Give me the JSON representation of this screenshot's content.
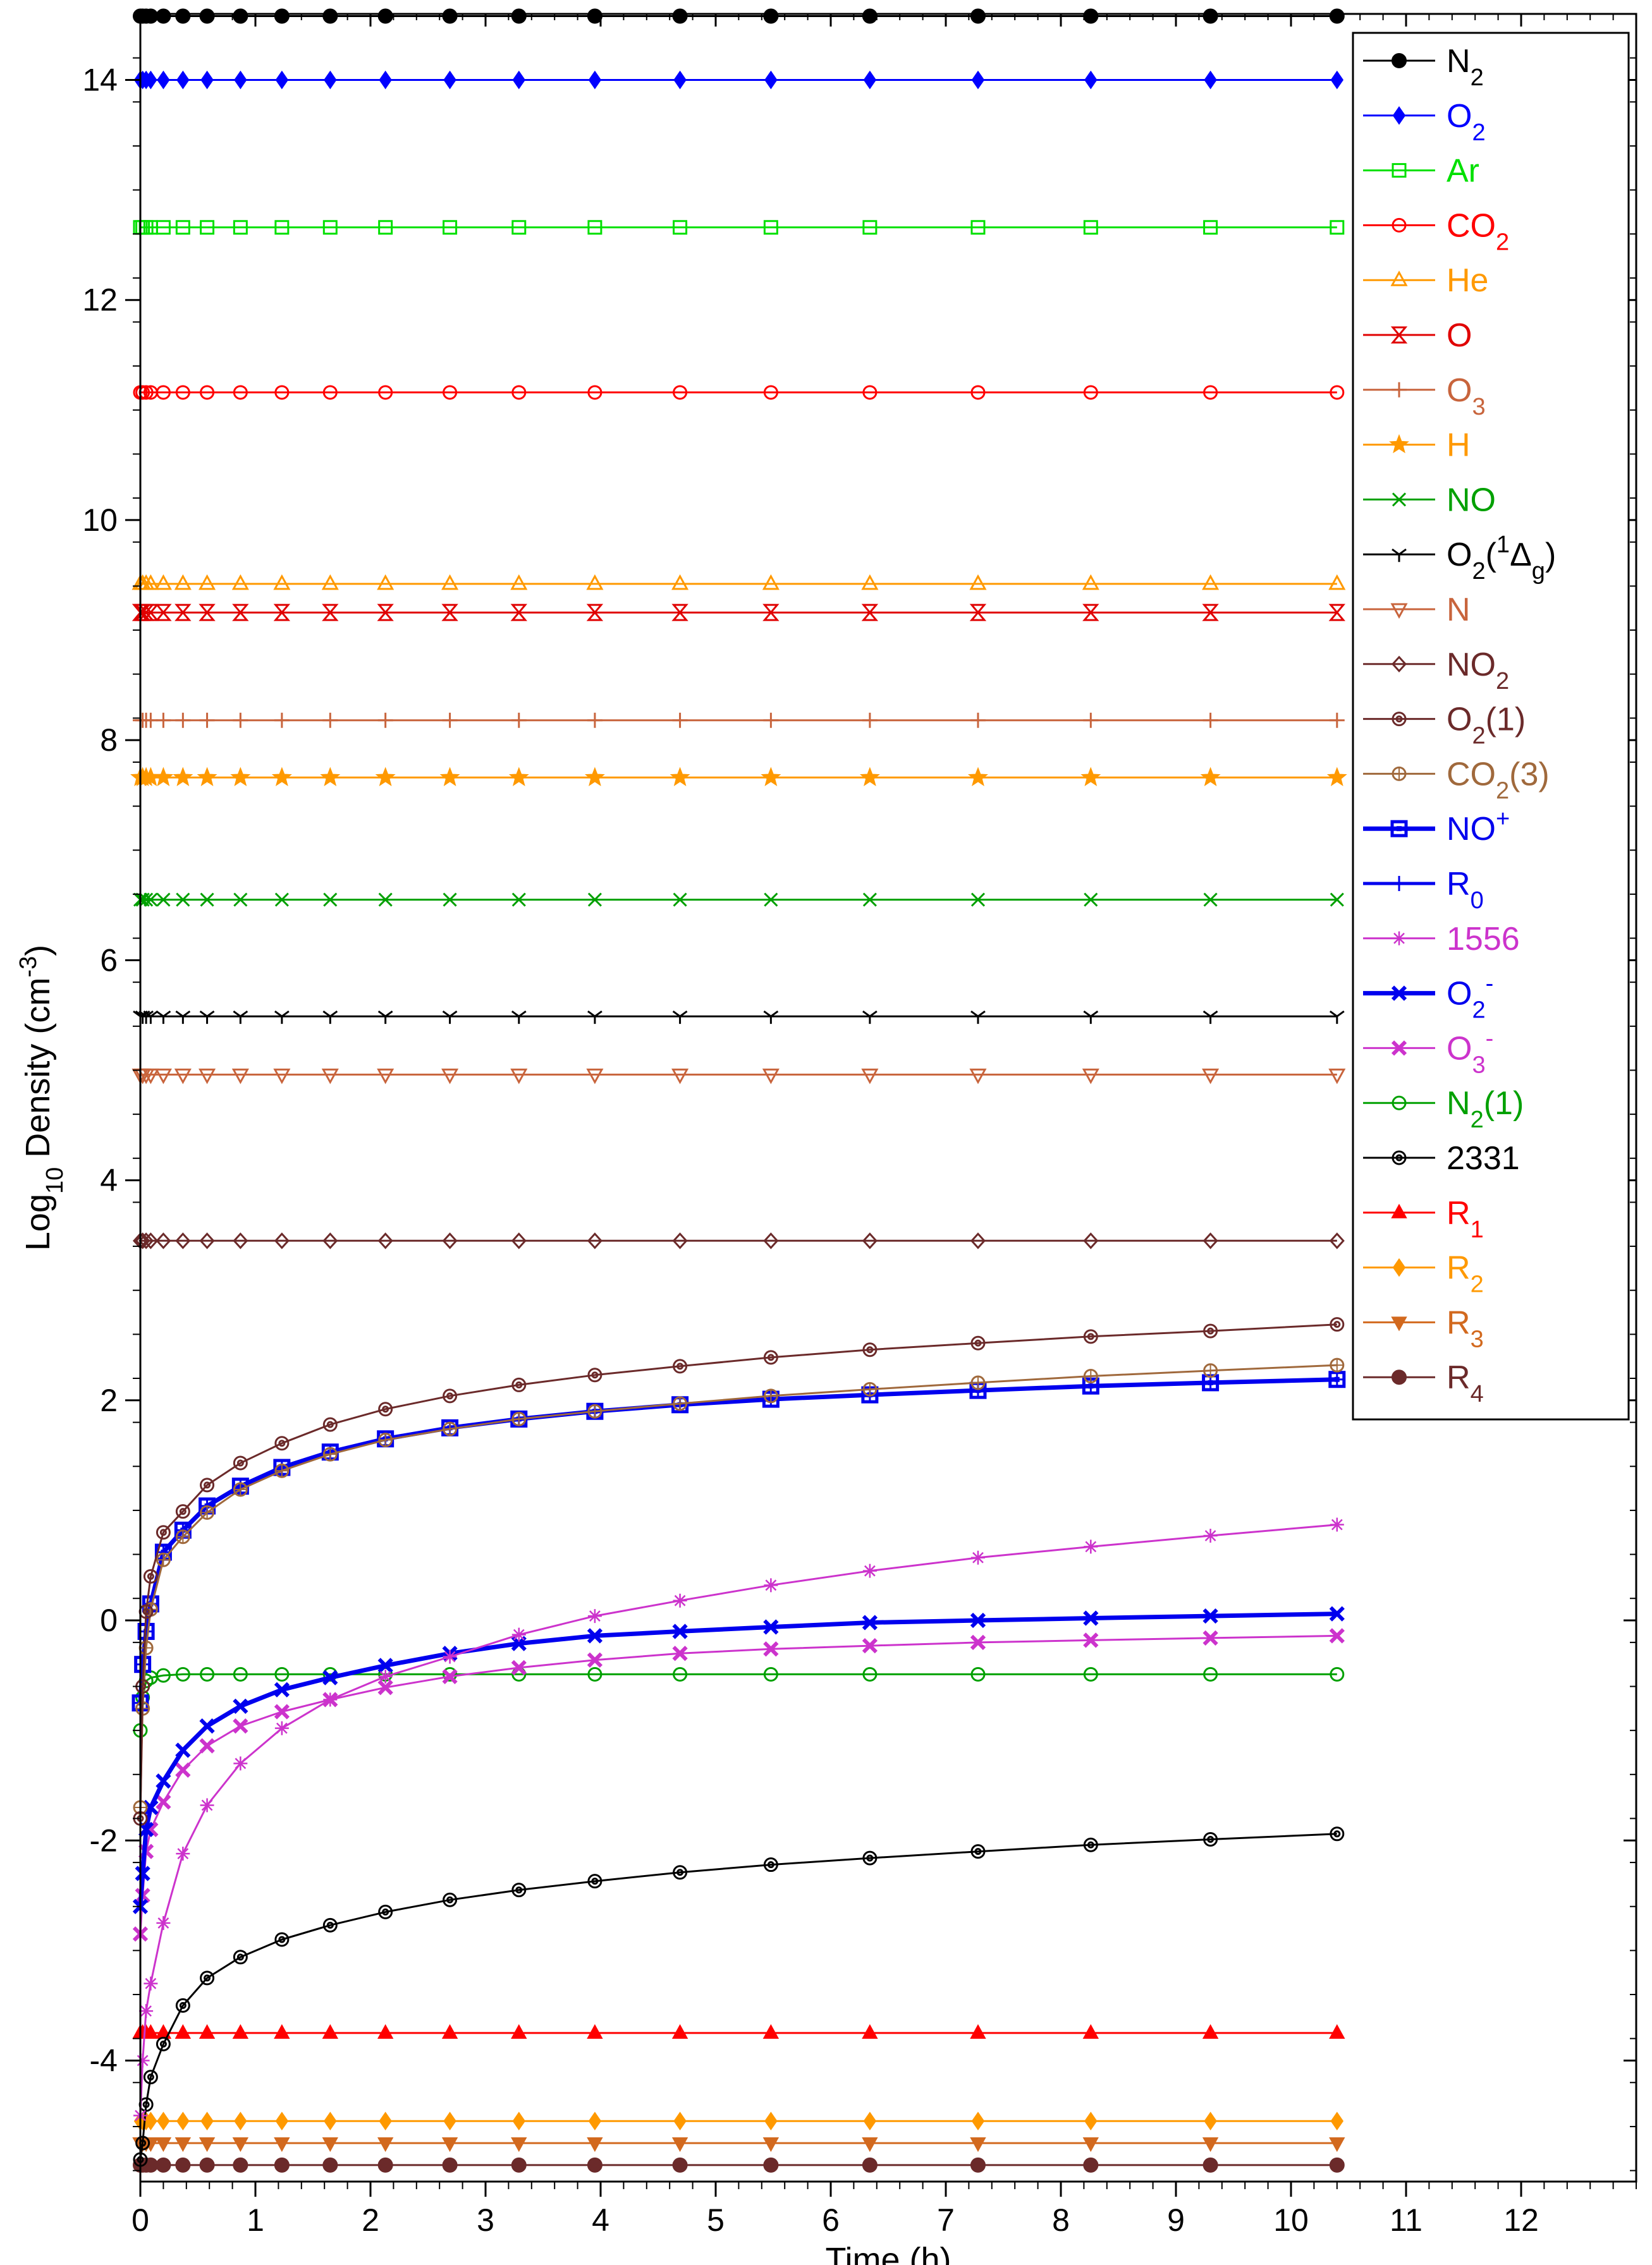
{
  "chart_data": {
    "type": "line",
    "title": "",
    "xlabel": "Time (h)",
    "ylabel_parts": [
      "Log",
      "10",
      " Density (cm",
      "-3",
      ")"
    ],
    "xlim": [
      0,
      13
    ],
    "ylim": [
      -5.1,
      14.6
    ],
    "x_ticks": [
      0,
      1,
      2,
      3,
      4,
      5,
      6,
      7,
      8,
      9,
      10,
      11,
      12
    ],
    "x_tick_labels": [
      "0",
      "1",
      "2",
      "3",
      "4",
      "5",
      "6",
      "7",
      "8",
      "9",
      "10",
      "11",
      "12"
    ],
    "y_ticks": [
      -4,
      -2,
      0,
      2,
      4,
      6,
      8,
      10,
      12,
      14
    ],
    "y_tick_labels": [
      "-4",
      "-2",
      "0",
      "2",
      "4",
      "6",
      "8",
      "10",
      "12",
      "14"
    ],
    "x": [
      0,
      0.02,
      0.05,
      0.09,
      0.2,
      0.37,
      0.58,
      0.87,
      1.23,
      1.65,
      2.13,
      2.69,
      3.29,
      3.95,
      4.69,
      5.48,
      6.34,
      7.28,
      8.26,
      9.3,
      10.4
    ],
    "legend": {
      "position": "top-right"
    },
    "series": [
      {
        "name": "N2",
        "label": [
          [
            "N",
            ""
          ],
          [
            "2",
            "sub"
          ]
        ],
        "color": "#000000",
        "marker": "dot",
        "width": 3,
        "const": 14.58
      },
      {
        "name": "O2",
        "label": [
          [
            "O",
            ""
          ],
          [
            "2",
            "sub"
          ]
        ],
        "color": "#0000ff",
        "marker": "diamond",
        "width": 3,
        "const": 14.0
      },
      {
        "name": "Ar",
        "label": [
          [
            "Ar",
            ""
          ]
        ],
        "color": "#00e000",
        "marker": "square-open",
        "width": 3,
        "const": 12.66
      },
      {
        "name": "CO2",
        "label": [
          [
            "CO",
            ""
          ],
          [
            "2",
            "sub"
          ]
        ],
        "color": "#ff0000",
        "marker": "circle-open",
        "width": 3,
        "const": 11.16
      },
      {
        "name": "He",
        "label": [
          [
            "He",
            ""
          ]
        ],
        "color": "#ff9900",
        "marker": "triangle-open",
        "width": 3,
        "const": 9.42
      },
      {
        "name": "O",
        "label": [
          [
            "O",
            ""
          ]
        ],
        "color": "#e00000",
        "marker": "bowtie",
        "width": 3,
        "const": 9.16
      },
      {
        "name": "O3",
        "label": [
          [
            "O",
            ""
          ],
          [
            "3",
            "sub"
          ]
        ],
        "color": "#c8643c",
        "marker": "plus",
        "width": 3,
        "const": 8.18
      },
      {
        "name": "H",
        "label": [
          [
            "H",
            ""
          ]
        ],
        "color": "#ff9900",
        "marker": "star",
        "width": 3,
        "const": 7.66
      },
      {
        "name": "NO",
        "label": [
          [
            "NO",
            ""
          ]
        ],
        "color": "#00a000",
        "marker": "cross",
        "width": 3,
        "const": 6.55
      },
      {
        "name": "O2(1Δg)",
        "label": [
          [
            "O",
            ""
          ],
          [
            "2",
            "sub"
          ],
          [
            "(",
            ""
          ],
          [
            "1",
            "sup"
          ],
          [
            "Δ",
            ""
          ],
          [
            "g",
            "sub"
          ],
          [
            ")",
            ""
          ]
        ],
        "color": "#000000",
        "marker": "tri-y",
        "width": 3,
        "const": 5.49
      },
      {
        "name": "N",
        "label": [
          [
            "N",
            ""
          ]
        ],
        "color": "#c8643c",
        "marker": "triangle-down-open",
        "width": 3,
        "const": 4.96
      },
      {
        "name": "NO2",
        "label": [
          [
            "NO",
            ""
          ],
          [
            "2",
            "sub"
          ]
        ],
        "color": "#6b2a2a",
        "marker": "diamond-open",
        "width": 3,
        "const": 3.45
      },
      {
        "name": "O2(1)",
        "label": [
          [
            "O",
            ""
          ],
          [
            "2",
            "sub"
          ],
          [
            "(1)",
            ""
          ]
        ],
        "color": "#6b2a2a",
        "marker": "circle-target",
        "width": 3,
        "values": [
          -1.8,
          -0.6,
          0.08,
          0.4,
          0.8,
          0.99,
          1.23,
          1.43,
          1.61,
          1.78,
          1.92,
          2.04,
          2.14,
          2.23,
          2.31,
          2.39,
          2.46,
          2.52,
          2.58,
          2.63,
          2.69
        ]
      },
      {
        "name": "CO2(3)",
        "label": [
          [
            "CO",
            ""
          ],
          [
            "2",
            "sub"
          ],
          [
            "(3)",
            ""
          ]
        ],
        "color": "#a0693c",
        "marker": "circle-plus",
        "width": 3,
        "values": [
          -1.7,
          -0.8,
          -0.25,
          0.1,
          0.55,
          0.76,
          0.98,
          1.19,
          1.36,
          1.51,
          1.64,
          1.74,
          1.83,
          1.9,
          1.97,
          2.04,
          2.1,
          2.16,
          2.22,
          2.27,
          2.32
        ]
      },
      {
        "name": "NO+",
        "label": [
          [
            "NO",
            ""
          ],
          [
            "+",
            "sup"
          ]
        ],
        "color": "#0000ee",
        "marker": "square-dot",
        "width": 7,
        "values": [
          -0.75,
          -0.4,
          -0.1,
          0.15,
          0.62,
          0.82,
          1.04,
          1.22,
          1.39,
          1.53,
          1.65,
          1.75,
          1.83,
          1.9,
          1.96,
          2.01,
          2.05,
          2.09,
          2.13,
          2.16,
          2.19
        ]
      },
      {
        "name": "R0",
        "label": [
          [
            "R",
            ""
          ],
          [
            "0",
            "sub"
          ]
        ],
        "color": "#0000ee",
        "marker": "plus",
        "width": 5,
        "values": [
          -0.75,
          -0.4,
          -0.1,
          0.15,
          0.62,
          0.82,
          1.04,
          1.22,
          1.39,
          1.53,
          1.65,
          1.75,
          1.83,
          1.9,
          1.96,
          2.01,
          2.05,
          2.09,
          2.13,
          2.16,
          2.19
        ]
      },
      {
        "name": "1556",
        "label": [
          [
            "1556",
            ""
          ]
        ],
        "color": "#cc33cc",
        "marker": "asterisk",
        "width": 3,
        "values": [
          -4.5,
          -4.0,
          -3.55,
          -3.3,
          -2.75,
          -2.12,
          -1.68,
          -1.3,
          -0.98,
          -0.72,
          -0.51,
          -0.33,
          -0.13,
          0.04,
          0.18,
          0.32,
          0.45,
          0.57,
          0.67,
          0.77,
          0.87
        ]
      },
      {
        "name": "O2-",
        "label": [
          [
            "O",
            ""
          ],
          [
            "2",
            "sub"
          ],
          [
            "-",
            "sup"
          ]
        ],
        "color": "#0000ee",
        "marker": "x-bold",
        "width": 7,
        "values": [
          -2.6,
          -2.3,
          -1.9,
          -1.7,
          -1.46,
          -1.18,
          -0.96,
          -0.78,
          -0.63,
          -0.52,
          -0.41,
          -0.3,
          -0.21,
          -0.14,
          -0.1,
          -0.06,
          -0.02,
          0.0,
          0.02,
          0.04,
          0.06
        ]
      },
      {
        "name": "O3-",
        "label": [
          [
            "O",
            ""
          ],
          [
            "3",
            "sub"
          ],
          [
            "-",
            "sup"
          ]
        ],
        "color": "#cc33cc",
        "marker": "x-bold",
        "width": 3,
        "values": [
          -2.85,
          -2.5,
          -2.1,
          -1.9,
          -1.65,
          -1.36,
          -1.14,
          -0.96,
          -0.83,
          -0.72,
          -0.61,
          -0.51,
          -0.43,
          -0.36,
          -0.3,
          -0.26,
          -0.23,
          -0.2,
          -0.18,
          -0.16,
          -0.14
        ]
      },
      {
        "name": "N2(1)",
        "label": [
          [
            "N",
            ""
          ],
          [
            "2",
            "sub"
          ],
          [
            "(1)",
            ""
          ]
        ],
        "color": "#00a000",
        "marker": "circle-open",
        "width": 3,
        "values": [
          -1.0,
          -0.7,
          -0.55,
          -0.52,
          -0.5,
          -0.49,
          -0.49,
          -0.49,
          -0.49,
          -0.49,
          -0.49,
          -0.49,
          -0.49,
          -0.49,
          -0.49,
          -0.49,
          -0.49,
          -0.49,
          -0.49,
          -0.49,
          -0.49
        ]
      },
      {
        "name": "2331",
        "label": [
          [
            "2331",
            ""
          ]
        ],
        "color": "#000000",
        "marker": "circle-target",
        "width": 3,
        "values": [
          -4.9,
          -4.75,
          -4.4,
          -4.15,
          -3.85,
          -3.5,
          -3.25,
          -3.06,
          -2.9,
          -2.77,
          -2.65,
          -2.54,
          -2.45,
          -2.37,
          -2.29,
          -2.22,
          -2.16,
          -2.1,
          -2.04,
          -1.99,
          -1.94
        ]
      },
      {
        "name": "R1",
        "label": [
          [
            "R",
            ""
          ],
          [
            "1",
            "sub"
          ]
        ],
        "color": "#ff0000",
        "marker": "triangle",
        "width": 3,
        "const": -3.75
      },
      {
        "name": "R2",
        "label": [
          [
            "R",
            ""
          ],
          [
            "2",
            "sub"
          ]
        ],
        "color": "#ff9900",
        "marker": "diamond",
        "width": 3,
        "const": -4.55
      },
      {
        "name": "R3",
        "label": [
          [
            "R",
            ""
          ],
          [
            "3",
            "sub"
          ]
        ],
        "color": "#d2691e",
        "marker": "triangle-down",
        "width": 3,
        "const": -4.75
      },
      {
        "name": "R4",
        "label": [
          [
            "R",
            ""
          ],
          [
            "4",
            "sub"
          ]
        ],
        "color": "#6b2a2a",
        "marker": "dot",
        "width": 3,
        "const": -4.95
      }
    ]
  }
}
